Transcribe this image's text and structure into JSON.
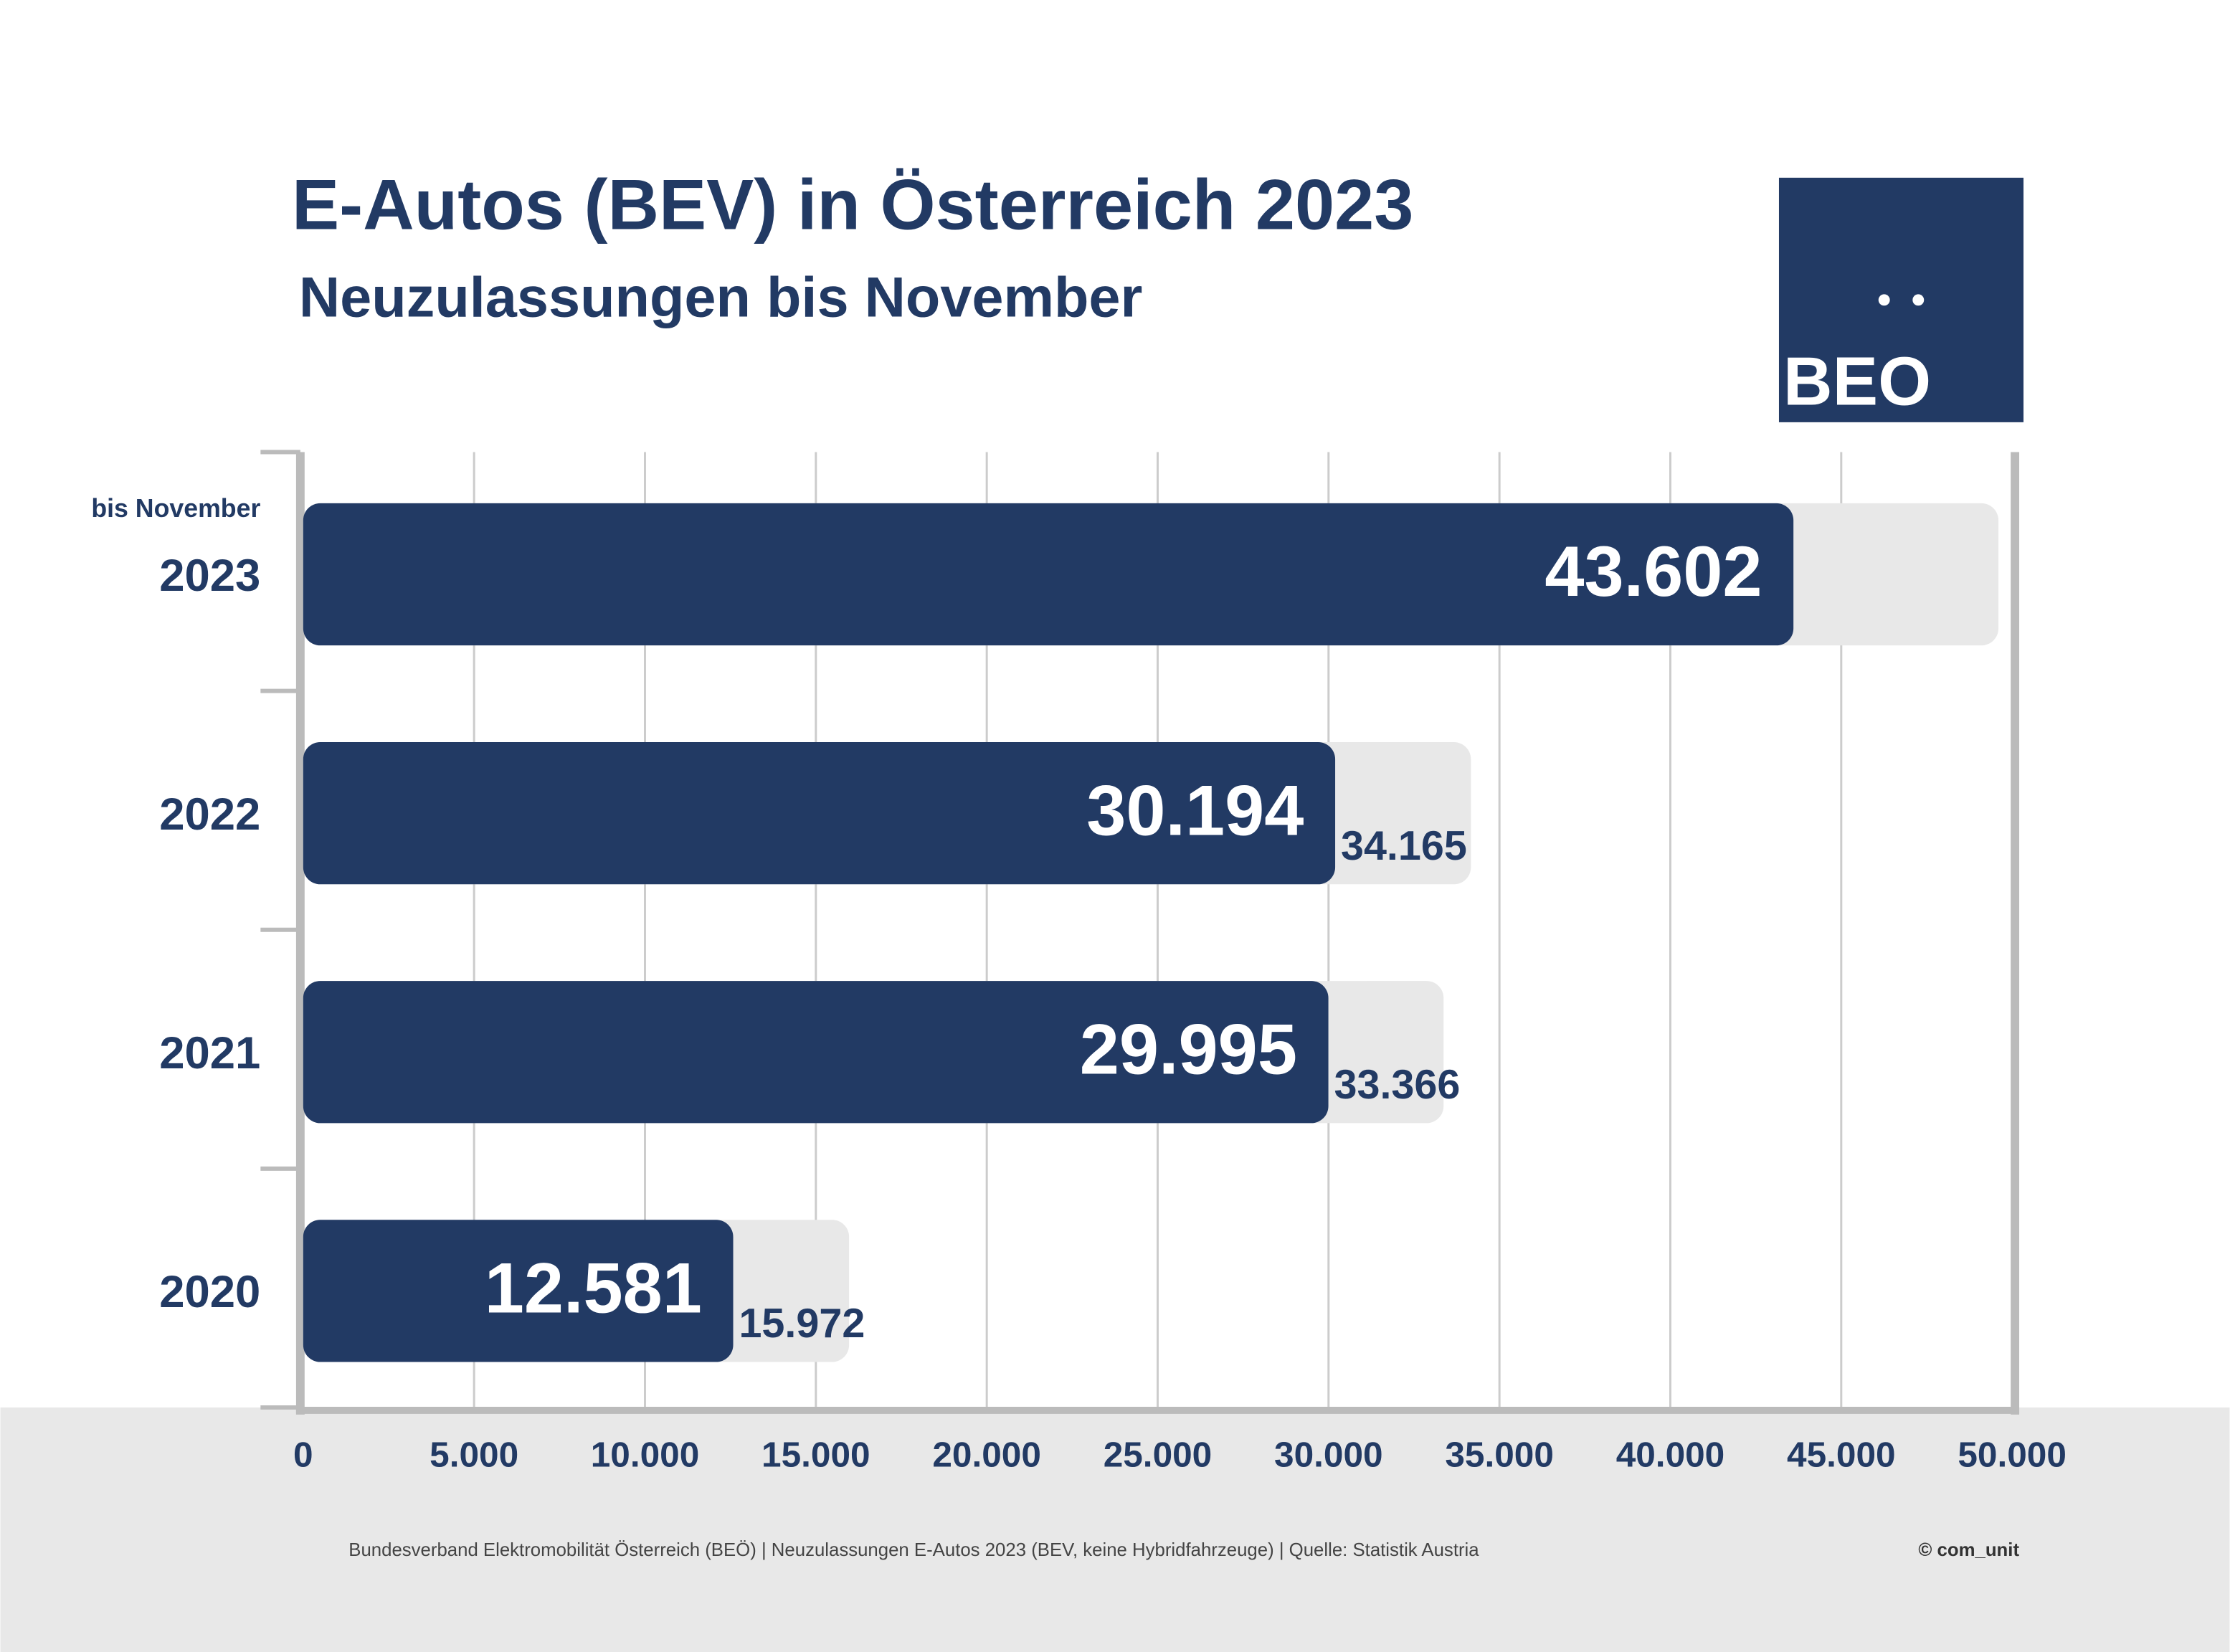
{
  "chart_data": {
    "type": "bar",
    "orientation": "horizontal",
    "title": "E-Autos (BEV) in Österreich 2023",
    "subtitle": "Neuzulassungen bis November",
    "categories": [
      "2023",
      "2022",
      "2021",
      "2020"
    ],
    "category_note": "bis November",
    "series": [
      {
        "color": "#223a64",
        "values": [
          43602,
          30194,
          29995,
          12581
        ],
        "value_labels": [
          "43.602",
          "30.194",
          "29.995",
          "12.581"
        ]
      },
      {
        "color": "#e8e8e8",
        "values": [
          49600,
          34165,
          33366,
          15972
        ],
        "value_labels": [
          null,
          "34.165",
          "33.366",
          "15.972"
        ]
      }
    ],
    "xlim": [
      0,
      50000
    ],
    "xticks": [
      0,
      {
        "value": 5000,
        "label": "5.000"
      },
      {
        "value": 10000,
        "label": "10.000"
      },
      {
        "value": 15000,
        "label": "15.000"
      },
      {
        "value": 20000,
        "label": "20.000"
      },
      {
        "value": 25000,
        "label": "25.000"
      },
      {
        "value": 30000,
        "label": "30.000"
      },
      {
        "value": 35000,
        "label": "35.000"
      },
      {
        "value": 40000,
        "label": "40.000"
      },
      {
        "value": 45000,
        "label": "45.000"
      },
      {
        "value": 50000,
        "label": "50.000"
      }
    ],
    "grid": true,
    "logo": "BEO",
    "footer": "Bundesverband Elektromobilität Österreich (BEÖ) | Neuzulassungen E-Autos 2023 (BEV, keine Hybridfahrzeuge) | Quelle: Statistik Austria",
    "copyright": "© com_unit"
  }
}
